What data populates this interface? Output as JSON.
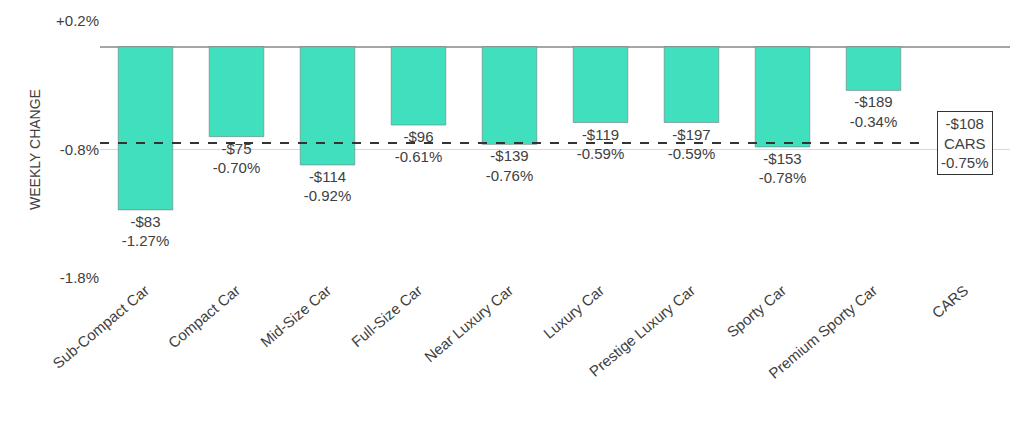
{
  "chart_data": {
    "type": "bar",
    "y_label": "WEEKLY CHANGE",
    "categories": [
      "Sub-Compact Car",
      "Compact Car",
      "Mid-Size Car",
      "Full-Size Car",
      "Near Luxury Car",
      "Luxury Car",
      "Prestige Luxury Car",
      "Sporty Car",
      "Premium Sporty Car",
      "CARS"
    ],
    "values": [
      -1.27,
      -0.7,
      -0.92,
      -0.61,
      -0.76,
      -0.59,
      -0.59,
      -0.78,
      -0.34,
      null
    ],
    "value_labels": [
      "-$83\n-1.27%",
      "-$75\n-0.70%",
      "-$114\n-0.92%",
      "-$96\n-0.61%",
      "-$139\n-0.76%",
      "-$119\n-0.59%",
      "-$197\n-0.59%",
      "-$153\n-0.78%",
      "-$189\n-0.34%",
      null
    ],
    "color": "#40e0bf",
    "ylim": [
      -1.8,
      0.2
    ],
    "yticks": [
      {
        "value": 0.2,
        "label": "+0.2%"
      },
      {
        "value": -0.8,
        "label": "-0.8%"
      },
      {
        "value": -1.8,
        "label": "-1.8%"
      }
    ],
    "grid": true,
    "data_labels": true,
    "reference_line": {
      "category": "CARS",
      "value": -0.75,
      "label": "-$108\nCARS\n-0.75%",
      "line_style": "dashed"
    }
  }
}
